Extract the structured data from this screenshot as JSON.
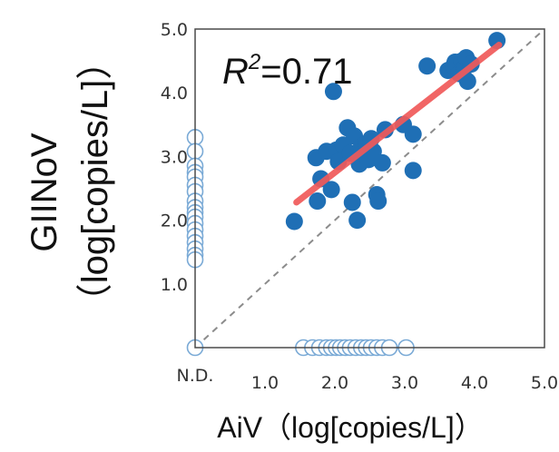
{
  "chart_data": {
    "type": "scatter",
    "title": "",
    "xlabel": "AiV（log[copies/L]）",
    "ylabel_line1": "GIINoV",
    "ylabel_line2": "（log[copies/L]）",
    "xlim": [
      0,
      5
    ],
    "ylim": [
      0,
      5
    ],
    "x_ticks": [
      {
        "value": 0,
        "label": "N.D."
      },
      {
        "value": 1,
        "label": "1.0"
      },
      {
        "value": 2,
        "label": "2.0"
      },
      {
        "value": 3,
        "label": "3.0"
      },
      {
        "value": 4,
        "label": "4.0"
      },
      {
        "value": 5,
        "label": "5.0"
      }
    ],
    "y_ticks": [
      {
        "value": 1,
        "label": "1.0"
      },
      {
        "value": 2,
        "label": "2.0"
      },
      {
        "value": 3,
        "label": "3.0"
      },
      {
        "value": 4,
        "label": "4.0"
      },
      {
        "value": 5,
        "label": "5.0"
      }
    ],
    "grid": false,
    "annotation": {
      "prefix": "R",
      "superscript": "2",
      "suffix": "=0.71"
    },
    "colors": {
      "detected": "#1f6fb5",
      "not_detected_stroke": "#7aaad6",
      "fit_line": "#f05a5a",
      "reference_line": "#8c8c8c"
    },
    "reference_line": {
      "from": [
        0,
        0
      ],
      "to": [
        5,
        5
      ]
    },
    "fit_line": {
      "from": [
        1.45,
        2.28
      ],
      "to": [
        4.35,
        4.75
      ]
    },
    "series": [
      {
        "style": "filled",
        "points": [
          [
            1.42,
            1.98
          ],
          [
            1.75,
            2.3
          ],
          [
            1.8,
            2.65
          ],
          [
            1.73,
            2.98
          ],
          [
            1.88,
            3.08
          ],
          [
            1.95,
            2.48
          ],
          [
            1.98,
            4.02
          ],
          [
            2.02,
            3.1
          ],
          [
            2.05,
            2.92
          ],
          [
            2.12,
            3.18
          ],
          [
            2.18,
            3.45
          ],
          [
            2.22,
            3.05
          ],
          [
            2.25,
            2.28
          ],
          [
            2.28,
            3.32
          ],
          [
            2.32,
            2.0
          ],
          [
            2.35,
            2.88
          ],
          [
            2.38,
            3.15
          ],
          [
            2.42,
            3.02
          ],
          [
            2.45,
            3.2
          ],
          [
            2.48,
            2.95
          ],
          [
            2.52,
            3.28
          ],
          [
            2.55,
            3.08
          ],
          [
            2.6,
            2.4
          ],
          [
            2.62,
            2.3
          ],
          [
            2.68,
            2.9
          ],
          [
            2.72,
            3.42
          ],
          [
            2.98,
            3.5
          ],
          [
            3.12,
            3.35
          ],
          [
            3.12,
            2.78
          ],
          [
            3.32,
            4.42
          ],
          [
            3.62,
            4.35
          ],
          [
            3.7,
            4.42
          ],
          [
            3.72,
            4.48
          ],
          [
            3.78,
            4.3
          ],
          [
            3.82,
            4.5
          ],
          [
            3.85,
            4.38
          ],
          [
            3.88,
            4.55
          ],
          [
            3.9,
            4.18
          ],
          [
            3.95,
            4.45
          ],
          [
            4.32,
            4.82
          ]
        ]
      },
      {
        "style": "hollow",
        "points": [
          [
            0,
            3.3
          ],
          [
            0,
            3.08
          ],
          [
            0,
            2.85
          ],
          [
            0,
            2.75
          ],
          [
            0,
            2.68
          ],
          [
            0,
            2.55
          ],
          [
            0,
            2.45
          ],
          [
            0,
            2.3
          ],
          [
            0,
            2.2
          ],
          [
            0,
            2.12
          ],
          [
            0,
            2.05
          ],
          [
            0,
            1.95
          ],
          [
            0,
            1.85
          ],
          [
            0,
            1.75
          ],
          [
            0,
            1.65
          ],
          [
            0,
            1.55
          ],
          [
            0,
            1.45
          ],
          [
            0,
            1.38
          ],
          [
            0,
            0
          ],
          [
            1.55,
            0
          ],
          [
            1.68,
            0
          ],
          [
            1.78,
            0
          ],
          [
            1.88,
            0
          ],
          [
            1.95,
            0
          ],
          [
            2.02,
            0
          ],
          [
            2.08,
            0
          ],
          [
            2.15,
            0
          ],
          [
            2.22,
            0
          ],
          [
            2.3,
            0
          ],
          [
            2.38,
            0
          ],
          [
            2.45,
            0
          ],
          [
            2.52,
            0
          ],
          [
            2.6,
            0
          ],
          [
            2.68,
            0
          ],
          [
            2.78,
            0
          ],
          [
            3.02,
            0
          ]
        ]
      }
    ]
  }
}
